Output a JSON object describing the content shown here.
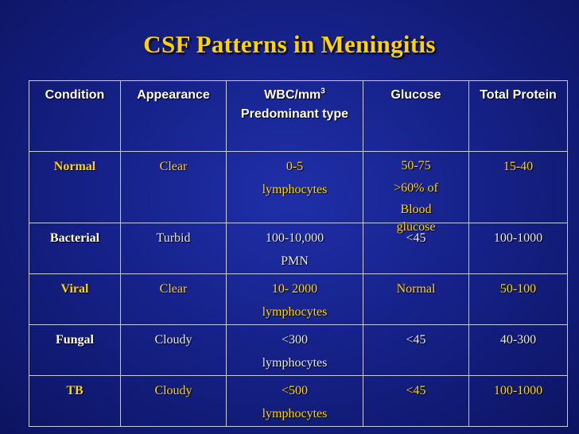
{
  "title": "CSF Patterns in Meningitis",
  "headers": {
    "condition": "Condition",
    "appearance": "Appearance",
    "wbc_main": "WBC/mm",
    "wbc_sup": "3",
    "wbc_sub": "Predominant type",
    "glucose": "Glucose",
    "protein": "Total Protein"
  },
  "rows": [
    {
      "condition": "Normal",
      "appearance": "Clear",
      "wbc": "0-5",
      "type": "lymphocytes",
      "glucose": [
        "50-75",
        ">60% of",
        "Blood",
        "glucose"
      ],
      "protein": "15-40"
    },
    {
      "condition": "Bacterial",
      "appearance": "Turbid",
      "wbc": "100-10,000",
      "type": "PMN",
      "glucose": [
        "<45"
      ],
      "protein": "100-1000"
    },
    {
      "condition": "Viral",
      "appearance": "Clear",
      "wbc": "10- 2000",
      "type": "lymphocytes",
      "glucose": [
        "Normal"
      ],
      "protein": "50-100"
    },
    {
      "condition": "Fungal",
      "appearance": "Cloudy",
      "wbc": "<300",
      "type": "lymphocytes",
      "glucose": [
        "<45"
      ],
      "protein": "40-300"
    },
    {
      "condition": "TB",
      "appearance": "Cloudy",
      "wbc": "<500",
      "type": "lymphocytes",
      "glucose": [
        "<45"
      ],
      "protein": "100-1000"
    }
  ],
  "colors": {
    "accent_yellow": "#ffd200",
    "background": "#16228a",
    "text_white": "#ffffff"
  }
}
